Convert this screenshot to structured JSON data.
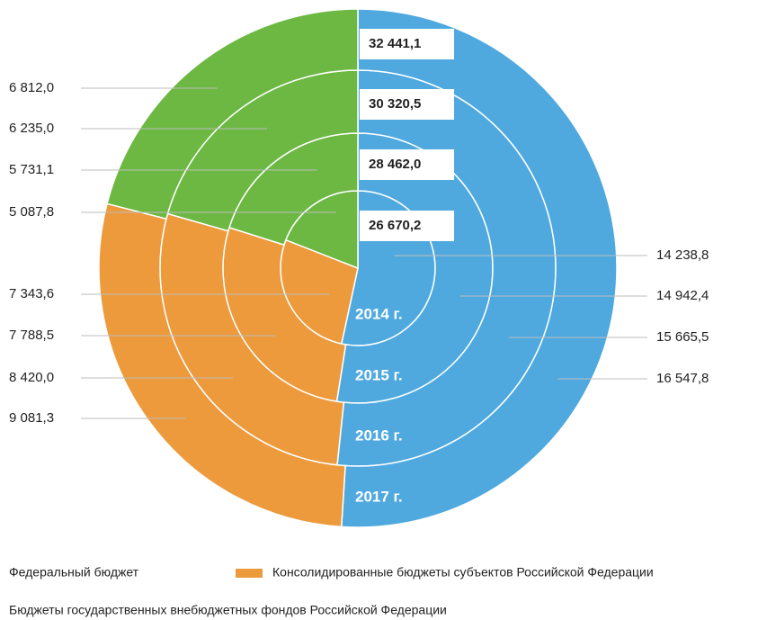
{
  "chart_data": {
    "type": "nested-donut",
    "categories": [
      "2014 г.",
      "2015 г.",
      "2016 г.",
      "2017 г."
    ],
    "series": [
      {
        "name": "Федеральный бюджет",
        "color": "#4fa9df",
        "values": [
          14238.8,
          14942.4,
          15665.5,
          16547.8
        ],
        "value_labels": [
          "14 238,8",
          "14 942,4",
          "15 665,5",
          "16 547,8"
        ]
      },
      {
        "name": "Консолидированные бюджеты субъектов Российской Федерации",
        "color": "#ec9a3c",
        "values": [
          7343.6,
          7788.5,
          8420.0,
          9081.3
        ],
        "value_labels": [
          "7 343,6",
          "7 788,5",
          "8 420,0",
          "9 081,3"
        ]
      },
      {
        "name": "Бюджеты государственных внебюджетных фондов Российской Федерации",
        "color": "#6cb843",
        "values": [
          5087.8,
          5731.1,
          6235.0,
          6812.0
        ],
        "value_labels": [
          "5 087,8",
          "5 731,1",
          "6 235,0",
          "6 812,0"
        ]
      }
    ],
    "totals": [
      26670.2,
      28462.0,
      30320.5,
      32441.1
    ],
    "total_labels": [
      "26 670,2",
      "28 462,0",
      "30 320,5",
      "32 441,1"
    ]
  }
}
